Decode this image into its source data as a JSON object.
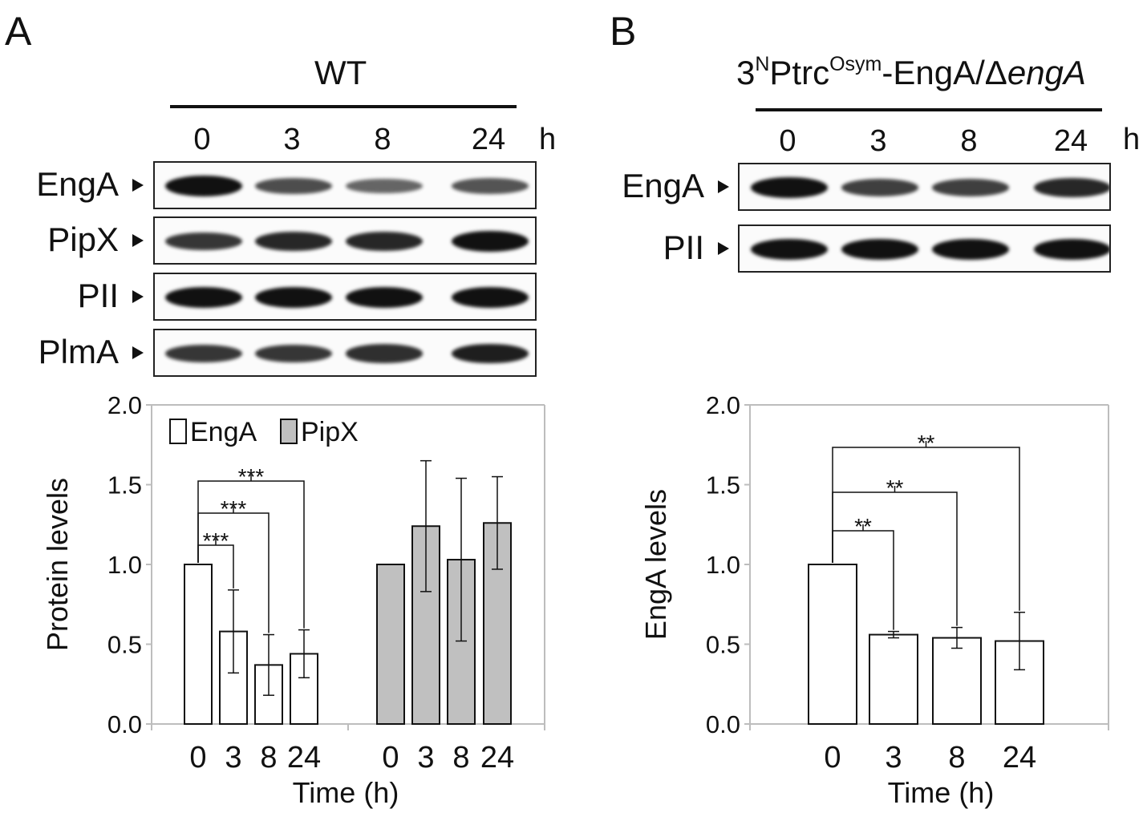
{
  "panelA": {
    "letter": "A",
    "condition": "WT",
    "timepoints": [
      "0",
      "3",
      "8",
      "24"
    ],
    "unit": "h",
    "blots": [
      {
        "label": "EngA",
        "intensity": [
          1.0,
          0.6,
          0.45,
          0.55
        ]
      },
      {
        "label": "PipX",
        "intensity": [
          0.75,
          0.85,
          0.85,
          1.0
        ]
      },
      {
        "label": "PII",
        "intensity": [
          1.0,
          1.0,
          1.0,
          1.0
        ]
      },
      {
        "label": "PlmA",
        "intensity": [
          0.75,
          0.75,
          0.8,
          0.9
        ]
      }
    ]
  },
  "panelB": {
    "letter": "B",
    "condition": {
      "prefix": "3",
      "sup1": "N",
      "mid": "Ptrc",
      "sup2": "Osym",
      "suffix": "-EngA/Δ",
      "italic": "engA"
    },
    "timepoints": [
      "0",
      "3",
      "8",
      "24"
    ],
    "unit": "h",
    "blots": [
      {
        "label": "EngA",
        "intensity": [
          1.0,
          0.7,
          0.7,
          0.85
        ]
      },
      {
        "label": "PII",
        "intensity": [
          1.0,
          1.0,
          1.0,
          1.0
        ]
      }
    ]
  },
  "chart_data": [
    {
      "type": "bar",
      "xlabel": "Time (h)",
      "ylabel": "Protein levels",
      "ylim": [
        0,
        2.0
      ],
      "yticks": [
        "0.0",
        "0.5",
        "1.0",
        "1.5",
        "2.0"
      ],
      "categories": [
        "0",
        "3",
        "8",
        "24"
      ],
      "legend_position": "top-left",
      "series": [
        {
          "name": "EngA",
          "color": "#ffffff",
          "values": [
            1.0,
            0.58,
            0.37,
            0.44
          ],
          "errors": [
            0,
            0.26,
            0.19,
            0.15
          ]
        },
        {
          "name": "PipX",
          "color": "#c0c0c0",
          "values": [
            1.0,
            1.24,
            1.03,
            1.26
          ],
          "errors": [
            0,
            0.41,
            0.51,
            0.29
          ]
        }
      ],
      "significance": [
        {
          "series": "EngA",
          "from": "0",
          "to": "3",
          "label": "***"
        },
        {
          "series": "EngA",
          "from": "0",
          "to": "8",
          "label": "***"
        },
        {
          "series": "EngA",
          "from": "0",
          "to": "24",
          "label": "***"
        }
      ]
    },
    {
      "type": "bar",
      "xlabel": "Time (h)",
      "ylabel": "EngA levels",
      "ylim": [
        0,
        2.0
      ],
      "yticks": [
        "0.0",
        "0.5",
        "1.0",
        "1.5",
        "2.0"
      ],
      "categories": [
        "0",
        "3",
        "8",
        "24"
      ],
      "series": [
        {
          "color": "#ffffff",
          "values": [
            1.0,
            0.56,
            0.54,
            0.52
          ],
          "errors": [
            0,
            0.02,
            0.065,
            0.18
          ]
        }
      ],
      "significance": [
        {
          "from": "0",
          "to": "3",
          "label": "**"
        },
        {
          "from": "0",
          "to": "8",
          "label": "**"
        },
        {
          "from": "0",
          "to": "24",
          "label": "**"
        }
      ]
    }
  ]
}
